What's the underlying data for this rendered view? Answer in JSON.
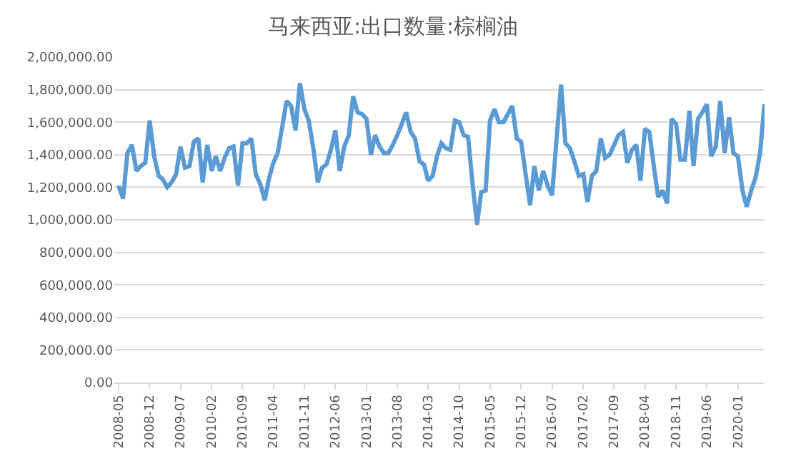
{
  "chart_data": {
    "type": "line",
    "title": "马来西亚:出口数量:棕榈油",
    "x": [
      "2008-05",
      "2008-06",
      "2008-07",
      "2008-08",
      "2008-09",
      "2008-10",
      "2008-11",
      "2008-12",
      "2009-01",
      "2009-02",
      "2009-03",
      "2009-04",
      "2009-05",
      "2009-06",
      "2009-07",
      "2009-08",
      "2009-09",
      "2009-10",
      "2009-11",
      "2009-12",
      "2010-01",
      "2010-02",
      "2010-03",
      "2010-04",
      "2010-05",
      "2010-06",
      "2010-07",
      "2010-08",
      "2010-09",
      "2010-10",
      "2010-11",
      "2010-12",
      "2011-01",
      "2011-02",
      "2011-03",
      "2011-04",
      "2011-05",
      "2011-06",
      "2011-07",
      "2011-08",
      "2011-09",
      "2011-10",
      "2011-11",
      "2011-12",
      "2012-01",
      "2012-02",
      "2012-03",
      "2012-04",
      "2012-05",
      "2012-06",
      "2012-07",
      "2012-08",
      "2012-09",
      "2012-10",
      "2012-11",
      "2012-12",
      "2013-01",
      "2013-02",
      "2013-03",
      "2013-04",
      "2013-05",
      "2013-06",
      "2013-07",
      "2013-08",
      "2013-09",
      "2013-10",
      "2013-11",
      "2013-12",
      "2014-01",
      "2014-02",
      "2014-03",
      "2014-04",
      "2014-05",
      "2014-06",
      "2014-07",
      "2014-08",
      "2014-09",
      "2014-10",
      "2014-11",
      "2014-12",
      "2015-01",
      "2015-02",
      "2015-03",
      "2015-04",
      "2015-05",
      "2015-06",
      "2015-07",
      "2015-08",
      "2015-09",
      "2015-10",
      "2015-11",
      "2015-12",
      "2016-01",
      "2016-02",
      "2016-03",
      "2016-04",
      "2016-05",
      "2016-06",
      "2016-07",
      "2016-08",
      "2016-09",
      "2016-10",
      "2016-11",
      "2016-12",
      "2017-01",
      "2017-02",
      "2017-03",
      "2017-04",
      "2017-05",
      "2017-06",
      "2017-07",
      "2017-08",
      "2017-09",
      "2017-10",
      "2017-11",
      "2017-12",
      "2018-01",
      "2018-02",
      "2018-03",
      "2018-04",
      "2018-05",
      "2018-06",
      "2018-07",
      "2018-08",
      "2018-09",
      "2018-10",
      "2018-11",
      "2018-12",
      "2019-01",
      "2019-02",
      "2019-03",
      "2019-04",
      "2019-05",
      "2019-06",
      "2019-07",
      "2019-08",
      "2019-09",
      "2019-10",
      "2019-11",
      "2019-12",
      "2020-01",
      "2020-02",
      "2020-03",
      "2020-04",
      "2020-05",
      "2020-06",
      "2020-07"
    ],
    "series": [
      {
        "color": "#5b9bd5",
        "values": [
          1210000,
          1130000,
          1410000,
          1460000,
          1300000,
          1330000,
          1350000,
          1610000,
          1390000,
          1270000,
          1250000,
          1200000,
          1230000,
          1280000,
          1450000,
          1320000,
          1330000,
          1480000,
          1500000,
          1230000,
          1460000,
          1300000,
          1390000,
          1300000,
          1380000,
          1440000,
          1450000,
          1210000,
          1470000,
          1470000,
          1500000,
          1280000,
          1220000,
          1120000,
          1250000,
          1350000,
          1410000,
          1570000,
          1730000,
          1700000,
          1550000,
          1840000,
          1680000,
          1610000,
          1440000,
          1230000,
          1320000,
          1340000,
          1430000,
          1550000,
          1300000,
          1450000,
          1520000,
          1760000,
          1660000,
          1650000,
          1620000,
          1400000,
          1520000,
          1450000,
          1410000,
          1410000,
          1460000,
          1520000,
          1590000,
          1660000,
          1540000,
          1500000,
          1360000,
          1340000,
          1240000,
          1270000,
          1390000,
          1470000,
          1440000,
          1430000,
          1610000,
          1600000,
          1520000,
          1510000,
          1220000,
          970000,
          1170000,
          1180000,
          1610000,
          1680000,
          1600000,
          1600000,
          1650000,
          1700000,
          1500000,
          1480000,
          1280000,
          1090000,
          1330000,
          1180000,
          1300000,
          1210000,
          1150000,
          1500000,
          1830000,
          1470000,
          1440000,
          1360000,
          1270000,
          1280000,
          1110000,
          1270000,
          1300000,
          1500000,
          1380000,
          1400000,
          1460000,
          1520000,
          1540000,
          1350000,
          1430000,
          1460000,
          1240000,
          1560000,
          1540000,
          1330000,
          1140000,
          1180000,
          1100000,
          1620000,
          1590000,
          1370000,
          1370000,
          1670000,
          1330000,
          1620000,
          1660000,
          1710000,
          1390000,
          1450000,
          1730000,
          1410000,
          1630000,
          1410000,
          1390000,
          1180000,
          1080000,
          1180000,
          1260000,
          1410000,
          1710000
        ]
      }
    ],
    "xlim": [
      "2008-04-16",
      "2020-07-16"
    ],
    "xticks": [
      "2008-05",
      "2008-12",
      "2009-07",
      "2010-02",
      "2010-09",
      "2011-04",
      "2011-11",
      "2012-06",
      "2013-01",
      "2013-08",
      "2014-03",
      "2014-10",
      "2015-05",
      "2015-12",
      "2016-07",
      "2017-02",
      "2017-09",
      "2018-04",
      "2018-11",
      "2019-06",
      "2020-01"
    ],
    "ylim": [
      0,
      2000000
    ],
    "yticks": [
      {
        "value": 0,
        "label": "0.00"
      },
      {
        "value": 200000,
        "label": "200,000.00"
      },
      {
        "value": 400000,
        "label": "400,000.00"
      },
      {
        "value": 600000,
        "label": "600,000.00"
      },
      {
        "value": 800000,
        "label": "800,000.00"
      },
      {
        "value": 1000000,
        "label": "1,000,000.00"
      },
      {
        "value": 1200000,
        "label": "1,200,000.00"
      },
      {
        "value": 1400000,
        "label": "1,400,000.00"
      },
      {
        "value": 1600000,
        "label": "1,600,000.00"
      },
      {
        "value": 1800000,
        "label": "1,800,000.00"
      },
      {
        "value": 2000000,
        "label": "2,000,000.00"
      }
    ],
    "grid": "y",
    "marker": "none",
    "line_style": "solid"
  }
}
